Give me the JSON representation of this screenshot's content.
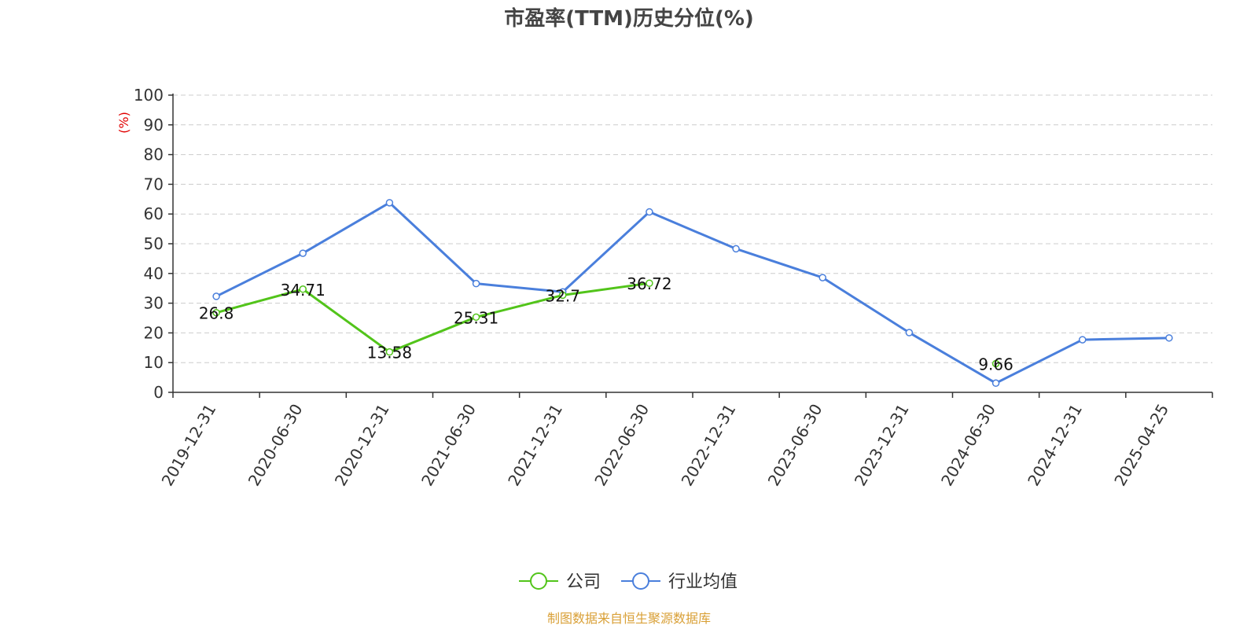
{
  "chart_data": {
    "type": "line",
    "title": "市盈率(TTM)历史分位(%)",
    "ylabel": "(%)",
    "ylim": [
      0,
      100
    ],
    "yticks": [
      0,
      10,
      20,
      30,
      40,
      50,
      60,
      70,
      80,
      90,
      100
    ],
    "grid": true,
    "legend_position": "bottom-center",
    "categories": [
      "2019-12-31",
      "2020-06-30",
      "2020-12-31",
      "2021-06-30",
      "2021-12-31",
      "2022-06-30",
      "2022-12-31",
      "2023-06-30",
      "2023-12-31",
      "2024-06-30",
      "2024-12-31",
      "2025-04-25"
    ],
    "series": [
      {
        "name": "公司",
        "color": "#52c41a",
        "values": [
          26.8,
          34.71,
          13.58,
          25.31,
          32.7,
          36.72,
          null,
          null,
          null,
          9.66,
          null,
          null
        ],
        "labels": [
          "26.8",
          "34.71",
          "13.58",
          "25.31",
          "32.7",
          "36.72",
          null,
          null,
          null,
          "9.66",
          null,
          null
        ]
      },
      {
        "name": "行业均值",
        "color": "#4a7fdc",
        "values": [
          32.3,
          46.8,
          63.8,
          36.6,
          33.8,
          60.7,
          48.3,
          38.6,
          20.1,
          3.1,
          17.7,
          18.3
        ]
      }
    ],
    "source": "制图数据来自恒生聚源数据库"
  },
  "colors": {
    "axis": "#333333",
    "grid": "#cccccc",
    "unit_label": "#e00000",
    "source": "#d9a037"
  }
}
